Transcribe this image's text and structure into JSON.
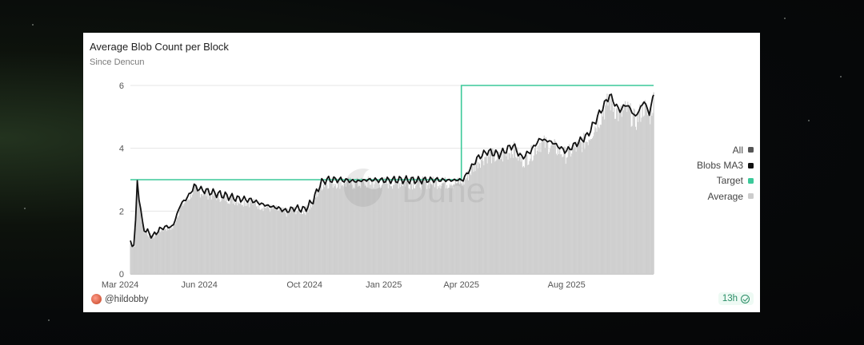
{
  "card": {
    "title": "Average Blob Count per Block",
    "subtitle": "Since Dencun",
    "author": "@hildobby",
    "refresh": "13h",
    "watermark": "Dune"
  },
  "legend": [
    {
      "label": "All",
      "color": "#555555"
    },
    {
      "label": "Blobs MA3",
      "color": "#111111"
    },
    {
      "label": "Target",
      "color": "#3cc99a"
    },
    {
      "label": "Average",
      "color": "#cccccc"
    }
  ],
  "chart_data": {
    "type": "line",
    "title": "Average Blob Count per Block",
    "subtitle": "Since Dencun",
    "xlabel": "",
    "ylabel": "",
    "x_tick_labels": [
      "Mar 2024",
      "Jun 2024",
      "Oct 2024",
      "Jan 2025",
      "Apr 2025",
      "Aug 2025"
    ],
    "x_tick_dates": [
      "2024-03-01",
      "2024-06-01",
      "2024-10-01",
      "2025-01-01",
      "2025-04-01",
      "2025-08-01"
    ],
    "x_range": [
      "2024-03-13",
      "2025-11-10"
    ],
    "y_ticks": [
      0,
      2,
      4,
      6
    ],
    "ylim": [
      0,
      6
    ],
    "grid": "horizontal",
    "legend_position": "right",
    "series": [
      {
        "name": "Blobs MA3",
        "color": "#111111",
        "style": "line",
        "x": [
          "2024-03-13",
          "2024-03-15",
          "2024-03-18",
          "2024-03-21",
          "2024-03-24",
          "2024-03-27",
          "2024-03-30",
          "2024-04-03",
          "2024-04-08",
          "2024-04-15",
          "2024-04-22",
          "2024-05-01",
          "2024-05-10",
          "2024-05-20",
          "2024-05-26",
          "2024-06-01",
          "2024-06-15",
          "2024-06-30",
          "2024-07-15",
          "2024-07-31",
          "2024-08-15",
          "2024-08-31",
          "2024-09-10",
          "2024-09-20",
          "2024-10-01",
          "2024-10-10",
          "2024-10-20",
          "2024-10-27",
          "2024-11-10",
          "2024-11-30",
          "2024-12-15",
          "2025-01-01",
          "2025-01-20",
          "2025-02-10",
          "2025-03-01",
          "2025-03-20",
          "2025-04-03",
          "2025-04-10",
          "2025-04-20",
          "2025-05-01",
          "2025-05-15",
          "2025-05-31",
          "2025-06-10",
          "2025-06-20",
          "2025-07-01",
          "2025-07-15",
          "2025-07-31",
          "2025-08-10",
          "2025-08-25",
          "2025-09-10",
          "2025-09-20",
          "2025-10-01",
          "2025-10-10",
          "2025-10-20",
          "2025-10-30",
          "2025-11-05",
          "2025-11-10"
        ],
        "values": [
          1.0,
          1.0,
          0.9,
          3.0,
          2.2,
          1.6,
          1.4,
          1.3,
          1.2,
          1.4,
          1.5,
          1.5,
          2.2,
          2.5,
          2.8,
          2.7,
          2.6,
          2.5,
          2.4,
          2.35,
          2.2,
          2.1,
          2.0,
          2.1,
          2.05,
          2.3,
          2.9,
          3.0,
          3.0,
          2.95,
          3.0,
          2.98,
          3.0,
          2.98,
          3.0,
          2.98,
          3.0,
          3.3,
          3.7,
          3.9,
          3.8,
          4.1,
          3.7,
          3.9,
          4.3,
          4.2,
          3.9,
          4.1,
          4.4,
          5.2,
          5.7,
          5.2,
          5.4,
          5.0,
          5.5,
          5.1,
          5.7
        ]
      },
      {
        "name": "Target",
        "color": "#3cc99a",
        "style": "step",
        "x": [
          "2024-03-13",
          "2025-04-01",
          "2025-04-01",
          "2025-11-10"
        ],
        "values": [
          3,
          3,
          6,
          6
        ]
      },
      {
        "name": "Average",
        "color": "#cccccc",
        "style": "bar",
        "note": "daily values approximately follow the Blobs MA3 series with daily noise"
      }
    ]
  }
}
